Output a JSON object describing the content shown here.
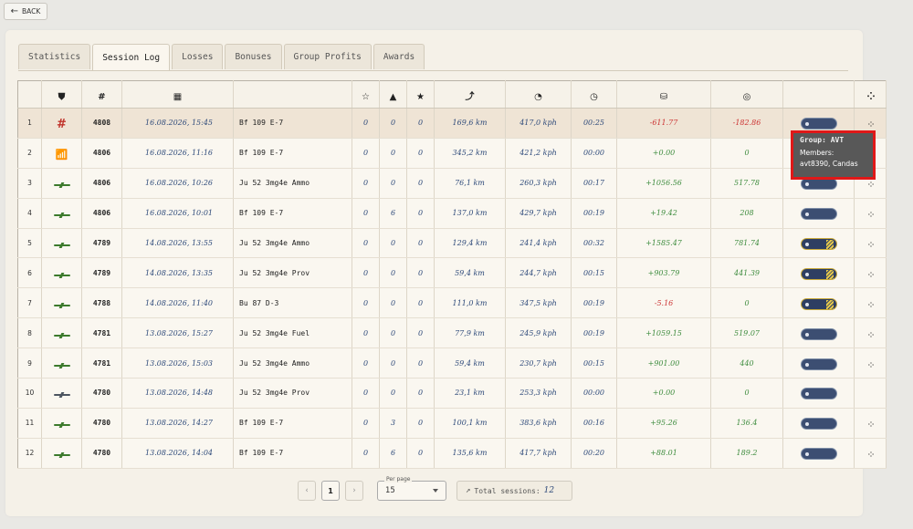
{
  "back_label": "BACK",
  "tabs": [
    "Statistics",
    "Session Log",
    "Losses",
    "Bonuses",
    "Group Profits",
    "Awards"
  ],
  "columns": {
    "no": "",
    "status": "shield-icon",
    "id": "#",
    "date": "calendar-icon",
    "aircraft": "",
    "star_outline": "star-outline-icon",
    "mountain": "mountain-icon",
    "star": "star-icon",
    "distance": "distance-icon",
    "speed": "speedometer-icon",
    "time": "clock-icon",
    "money": "coins-icon",
    "target": "target-icon",
    "rank": "",
    "group": "group-icon"
  },
  "rows": [
    {
      "n": "1",
      "icon": "hash",
      "id": "4808",
      "date": "16.08.2026, 15:45",
      "aircraft": "Bf 109 E-7",
      "a": "0",
      "b": "0",
      "c": "0",
      "dist": "169,6 km",
      "speed": "417,0 kph",
      "time": "00:25",
      "money": "-611.77",
      "target": "-182.86",
      "rank": "silver",
      "group": true
    },
    {
      "n": "2",
      "icon": "wifi",
      "id": "4806",
      "date": "16.08.2026, 11:16",
      "aircraft": "Bf 109 E-7",
      "a": "0",
      "b": "0",
      "c": "0",
      "dist": "345,2 km",
      "speed": "421,2 kph",
      "time": "00:00",
      "money": "+0.00",
      "target": "0",
      "rank": "silver",
      "group": false
    },
    {
      "n": "3",
      "icon": "plane",
      "id": "4806",
      "date": "16.08.2026, 10:26",
      "aircraft": "Ju 52 3mg4e Ammo",
      "a": "0",
      "b": "0",
      "c": "0",
      "dist": "76,1 km",
      "speed": "260,3 kph",
      "time": "00:17",
      "money": "+1056.56",
      "target": "517.78",
      "rank": "silver",
      "group": true
    },
    {
      "n": "4",
      "icon": "plane",
      "id": "4806",
      "date": "16.08.2026, 10:01",
      "aircraft": "Bf 109 E-7",
      "a": "0",
      "b": "6",
      "c": "0",
      "dist": "137,0 km",
      "speed": "429,7 kph",
      "time": "00:19",
      "money": "+19.42",
      "target": "208",
      "rank": "silver",
      "group": true
    },
    {
      "n": "5",
      "icon": "plane",
      "id": "4789",
      "date": "14.08.2026, 13:55",
      "aircraft": "Ju 52 3mg4e Ammo",
      "a": "0",
      "b": "0",
      "c": "0",
      "dist": "129,4 km",
      "speed": "241,4 kph",
      "time": "00:32",
      "money": "+1585.47",
      "target": "781.74",
      "rank": "gold",
      "group": true
    },
    {
      "n": "6",
      "icon": "plane",
      "id": "4789",
      "date": "14.08.2026, 13:35",
      "aircraft": "Ju 52 3mg4e Prov",
      "a": "0",
      "b": "0",
      "c": "0",
      "dist": "59,4 km",
      "speed": "244,7 kph",
      "time": "00:15",
      "money": "+903.79",
      "target": "441.39",
      "rank": "gold",
      "group": true
    },
    {
      "n": "7",
      "icon": "plane",
      "id": "4788",
      "date": "14.08.2026, 11:40",
      "aircraft": "Bu 87 D-3",
      "a": "0",
      "b": "0",
      "c": "0",
      "dist": "111,0 km",
      "speed": "347,5 kph",
      "time": "00:19",
      "money": "-5.16",
      "target": "0",
      "rank": "gold",
      "group": true
    },
    {
      "n": "8",
      "icon": "plane",
      "id": "4781",
      "date": "13.08.2026, 15:27",
      "aircraft": "Ju 52 3mg4e Fuel",
      "a": "0",
      "b": "0",
      "c": "0",
      "dist": "77,9 km",
      "speed": "245,9 kph",
      "time": "00:19",
      "money": "+1059.15",
      "target": "519.07",
      "rank": "silver",
      "group": true
    },
    {
      "n": "9",
      "icon": "plane",
      "id": "4781",
      "date": "13.08.2026, 15:03",
      "aircraft": "Ju 52 3mg4e Ammo",
      "a": "0",
      "b": "0",
      "c": "0",
      "dist": "59,4 km",
      "speed": "230,7 kph",
      "time": "00:15",
      "money": "+901.00",
      "target": "440",
      "rank": "silver",
      "group": true
    },
    {
      "n": "10",
      "icon": "grey",
      "id": "4780",
      "date": "13.08.2026, 14:48",
      "aircraft": "Ju 52 3mg4e Prov",
      "a": "0",
      "b": "0",
      "c": "0",
      "dist": "23,1 km",
      "speed": "253,3 kph",
      "time": "00:00",
      "money": "+0.00",
      "target": "0",
      "rank": "silver",
      "group": false
    },
    {
      "n": "11",
      "icon": "plane",
      "id": "4780",
      "date": "13.08.2026, 14:27",
      "aircraft": "Bf 109 E-7",
      "a": "0",
      "b": "3",
      "c": "0",
      "dist": "100,1 km",
      "speed": "383,6 kph",
      "time": "00:16",
      "money": "+95.26",
      "target": "136.4",
      "rank": "silver",
      "group": true
    },
    {
      "n": "12",
      "icon": "plane",
      "id": "4780",
      "date": "13.08.2026, 14:04",
      "aircraft": "Bf 109 E-7",
      "a": "0",
      "b": "6",
      "c": "0",
      "dist": "135,6 km",
      "speed": "417,7 kph",
      "time": "00:20",
      "money": "+88.01",
      "target": "189.2",
      "rank": "silver",
      "group": true
    }
  ],
  "pager": {
    "prev": "‹",
    "page": "1",
    "next": "›",
    "per_page_label": "Per page",
    "per_page": "15",
    "total_label": "Total sessions:",
    "total": "12"
  },
  "tooltip": {
    "title": "Group: AVT",
    "members_label": "Members:",
    "members": "avt8390, Candas"
  }
}
